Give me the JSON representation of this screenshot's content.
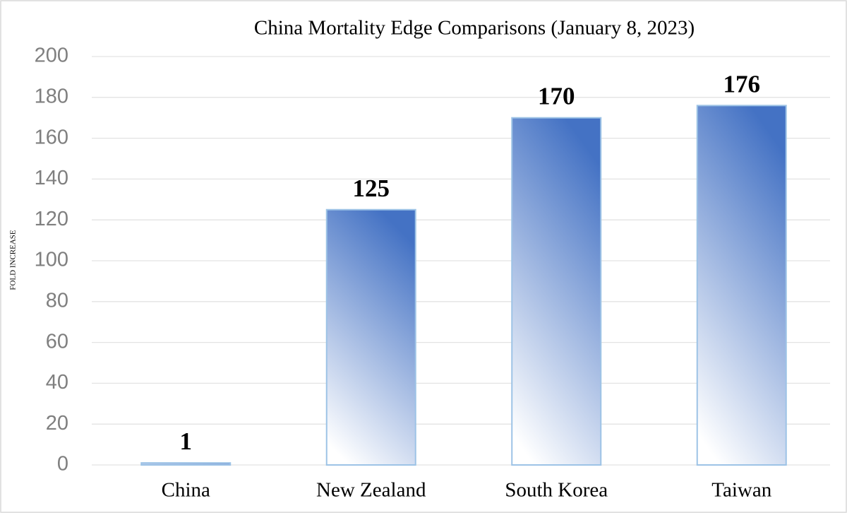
{
  "chart_data": {
    "type": "bar",
    "title": "China Mortality Edge Comparisons (January 8, 2023)",
    "y_label": "FOLD INCREASE",
    "categories": [
      "China",
      "New Zealand",
      "South Korea",
      "Taiwan"
    ],
    "values": [
      1,
      125,
      170,
      176
    ],
    "color": "#4472c4",
    "ylim": [
      0,
      200
    ],
    "yticks": [
      0,
      20,
      40,
      60,
      80,
      100,
      120,
      140,
      160,
      180,
      200
    ],
    "grid": true
  }
}
